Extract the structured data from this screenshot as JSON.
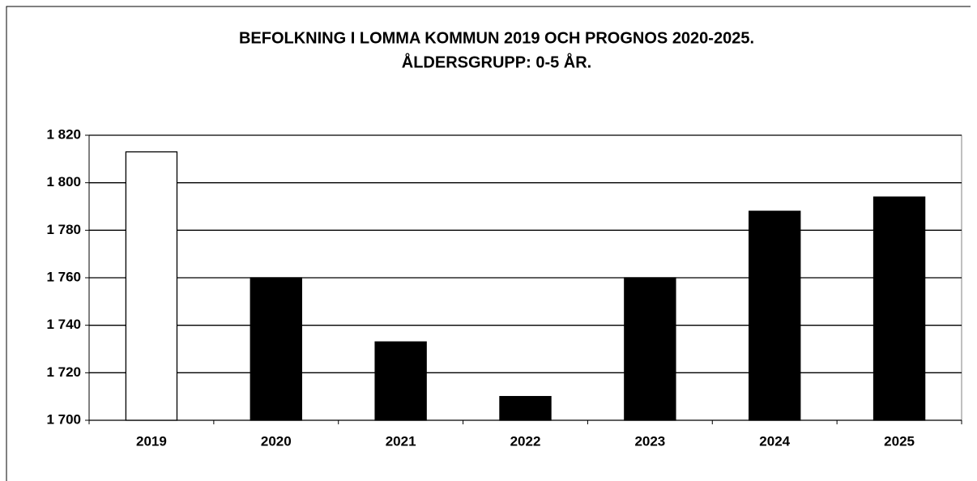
{
  "chart_data": {
    "type": "bar",
    "title": "BEFOLKNING I LOMMA KOMMUN 2019 OCH PROGNOS 2020-2025.",
    "subtitle": "ÅLDERSGRUPP: 0-5 ÅR.",
    "categories": [
      "2019",
      "2020",
      "2021",
      "2022",
      "2023",
      "2024",
      "2025"
    ],
    "values": [
      1813,
      1760,
      1733,
      1710,
      1760,
      1788,
      1794
    ],
    "colors": [
      "#ffffff",
      "#000000",
      "#000000",
      "#000000",
      "#000000",
      "#000000",
      "#000000"
    ],
    "ylim": [
      1700,
      1820
    ],
    "yticks": [
      {
        "value": 1700,
        "label": "1 700"
      },
      {
        "value": 1720,
        "label": "1 720"
      },
      {
        "value": 1740,
        "label": "1 740"
      },
      {
        "value": 1760,
        "label": "1 760"
      },
      {
        "value": 1780,
        "label": "1 780"
      },
      {
        "value": 1800,
        "label": "1 800"
      },
      {
        "value": 1820,
        "label": "1 820"
      }
    ],
    "grid": true
  }
}
